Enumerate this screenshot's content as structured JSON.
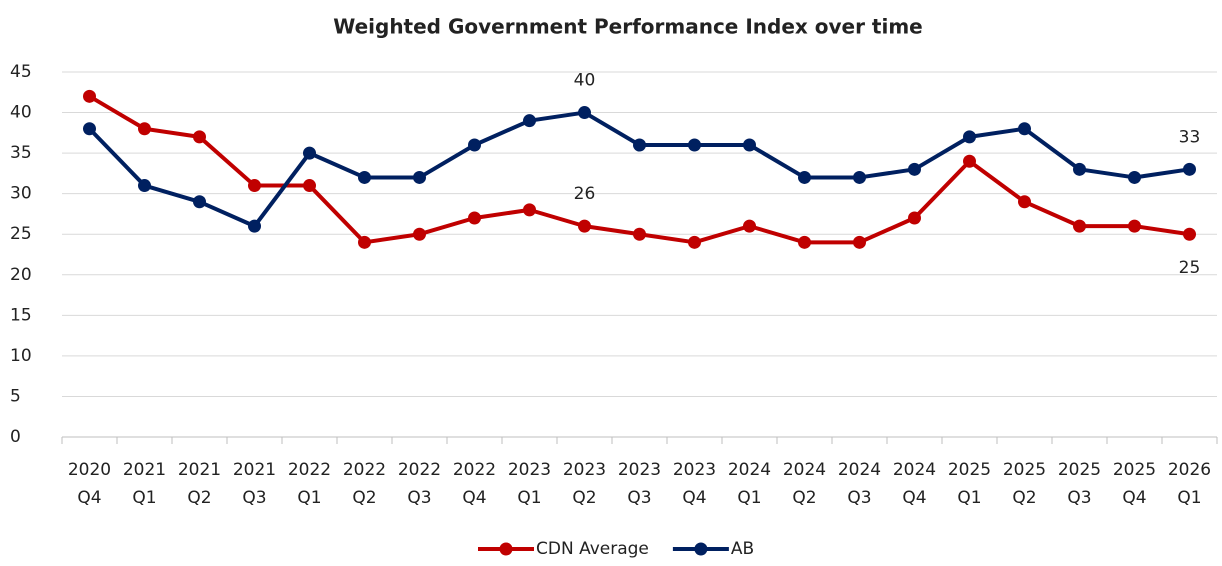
{
  "chart_data": {
    "type": "line",
    "title": "Weighted Government Performance Index over time",
    "categories": [
      "2020 Q4",
      "2021 Q1",
      "2021 Q2",
      "2021 Q3",
      "2022 Q1",
      "2022 Q2",
      "2022 Q3",
      "2022 Q4",
      "2023 Q1",
      "2023 Q2",
      "2023 Q3",
      "2023 Q4",
      "2024 Q1",
      "2024 Q2",
      "2024 Q3",
      "2024 Q4",
      "2025 Q1",
      "2025 Q2",
      "2025 Q3",
      "2025 Q4",
      "2026 Q1"
    ],
    "series": [
      {
        "name": "CDN Average",
        "color": "#c00000",
        "values": [
          42,
          38,
          37,
          31,
          31,
          24,
          25,
          27,
          28,
          26,
          25,
          24,
          26,
          24,
          24,
          27,
          34,
          29,
          26,
          26,
          25
        ],
        "value_labels": [
          null,
          null,
          null,
          null,
          null,
          null,
          null,
          null,
          null,
          "26",
          null,
          null,
          null,
          null,
          null,
          null,
          null,
          null,
          null,
          null,
          "25"
        ]
      },
      {
        "name": "AB",
        "color": "#002060",
        "values": [
          38,
          31,
          29,
          26,
          35,
          32,
          32,
          36,
          39,
          40,
          36,
          36,
          36,
          32,
          32,
          33,
          37,
          38,
          33,
          32,
          33
        ],
        "value_labels": [
          null,
          null,
          null,
          null,
          null,
          null,
          null,
          null,
          null,
          "40",
          null,
          null,
          null,
          null,
          null,
          null,
          null,
          null,
          null,
          null,
          "33"
        ]
      }
    ],
    "ylim": [
      0,
      45
    ],
    "yticks": [
      0,
      5,
      10,
      15,
      20,
      25,
      30,
      35,
      40,
      45
    ],
    "grid": true,
    "legend": "bottom"
  }
}
